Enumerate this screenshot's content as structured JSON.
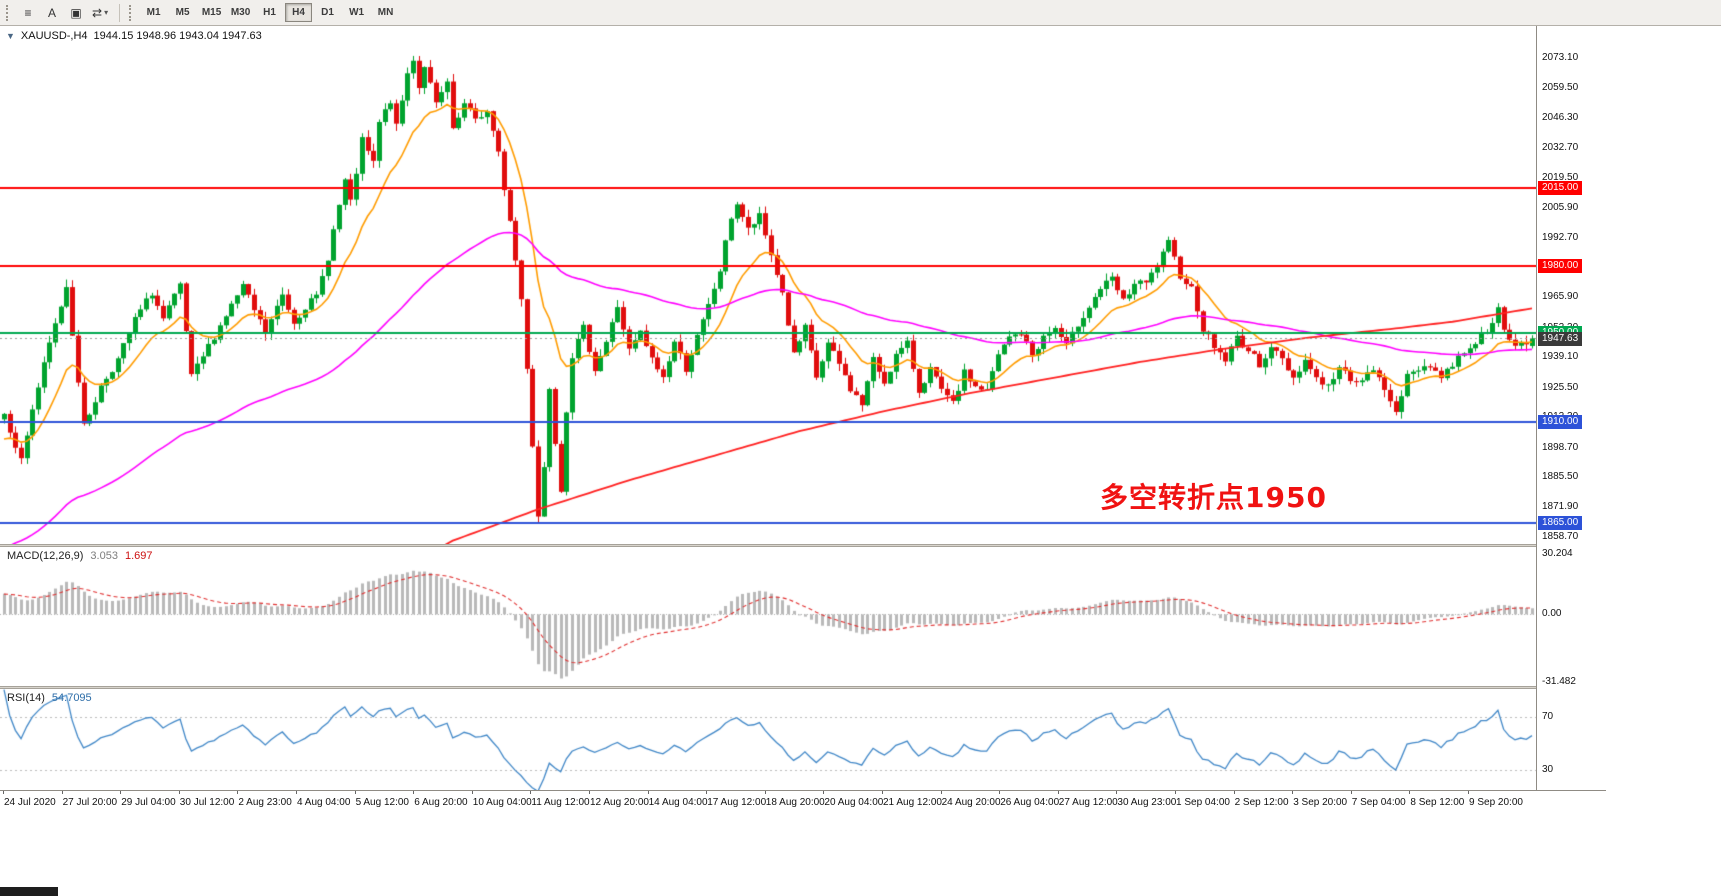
{
  "toolbar": {
    "tool_buttons": [
      {
        "name": "chart-list-icon",
        "glyph": "≡"
      },
      {
        "name": "text-label-icon",
        "glyph": "A"
      },
      {
        "name": "template-icon",
        "glyph": "▣"
      },
      {
        "name": "indicators-dropdown-icon",
        "glyph": "⇄",
        "caret": "▾"
      }
    ],
    "timeframes": [
      {
        "label": "M1",
        "active": false
      },
      {
        "label": "M5",
        "active": false
      },
      {
        "label": "M15",
        "active": false
      },
      {
        "label": "M30",
        "active": false
      },
      {
        "label": "H1",
        "active": false
      },
      {
        "label": "H4",
        "active": true
      },
      {
        "label": "D1",
        "active": false
      },
      {
        "label": "W1",
        "active": false
      },
      {
        "label": "MN",
        "active": false
      }
    ]
  },
  "chart": {
    "collapse_arrow": "▼",
    "title": "XAUUSD-,H4",
    "ohlc_text": "1944.15 1948.96 1943.04 1947.63",
    "annotation": {
      "text": "多空转折点1950",
      "color": "#f01212"
    },
    "y_ticks": [
      2073.1,
      2059.5,
      2046.3,
      2032.7,
      2019.5,
      2005.9,
      1992.7,
      1979.1,
      1965.9,
      1952.3,
      1939.1,
      1925.5,
      1912.3,
      1898.7,
      1885.5,
      1871.9,
      1858.7
    ],
    "x_ticks": [
      "24 Jul 2020",
      "27 Jul 20:00",
      "29 Jul 04:00",
      "30 Jul 12:00",
      "2 Aug 23:00",
      "4 Aug 04:00",
      "5 Aug 12:00",
      "6 Aug 20:00",
      "10 Aug 04:00",
      "11 Aug 12:00",
      "12 Aug 20:00",
      "14 Aug 04:00",
      "17 Aug 12:00",
      "18 Aug 20:00",
      "20 Aug 04:00",
      "21 Aug 12:00",
      "24 Aug 20:00",
      "26 Aug 04:00",
      "27 Aug 12:00",
      "30 Aug 23:00",
      "1 Sep 04:00",
      "2 Sep 12:00",
      "3 Sep 20:00",
      "7 Sep 04:00",
      "8 Sep 12:00",
      "9 Sep 20:00"
    ],
    "h_lines": [
      {
        "price": 2015.0,
        "label": "2015.00",
        "color": "#ff0000"
      },
      {
        "price": 1980.0,
        "label": "1980.00",
        "color": "#ff0000"
      },
      {
        "price": 1950.0,
        "label": "1950.00",
        "color": "#00a850"
      },
      {
        "price": 1910.0,
        "label": "1910.00",
        "color": "#2d52d8"
      },
      {
        "price": 1865.0,
        "label": "1865.00",
        "color": "#2d52d8"
      }
    ],
    "current_price": {
      "value": 1947.63,
      "label": "1947.63",
      "tag_bg": "#3a3a3a",
      "line_color": "#9c9c9c"
    },
    "colors": {
      "up": "#00a32e",
      "down": "#e00d0d",
      "ma_fast": "#ff9c00",
      "ma_mid": "#ff00ff",
      "ma_slow": "#ff2020",
      "background": "#ffffff"
    }
  },
  "macd": {
    "name": "MACD(12,26,9)",
    "value": "3.053",
    "signal": "1.697",
    "y_ticks": [
      {
        "v": 30.204,
        "label": "30.204"
      },
      {
        "v": 0,
        "label": "0.00"
      },
      {
        "v": -31.482,
        "label": "-31.482"
      }
    ],
    "ylim": [
      -33.5,
      31.5
    ],
    "hist_color": "#b9b9b9",
    "signal_color": "#e03030"
  },
  "rsi": {
    "name": "RSI(14)",
    "value": "54.7095",
    "levels": [
      70,
      30
    ],
    "ylim": [
      15,
      91
    ],
    "line_color": "#4087c7",
    "level_color": "#bbbbbb"
  },
  "chart_data": {
    "type": "candlestick",
    "symbol": "XAUUSD",
    "timeframe": "H4",
    "visible_range": [
      "24 Jul 2020",
      "9 Sep 2020 20:00"
    ],
    "visible_candles": 270,
    "price_axis_range": [
      1855.5,
      2087.4
    ],
    "last_candle": {
      "open": 1944.15,
      "high": 1948.96,
      "low": 1943.04,
      "close": 1947.63
    },
    "horizontal_levels": [
      2015.0,
      1980.0,
      1950.0,
      1910.0,
      1865.0
    ],
    "close_waypoints": [
      [
        0,
        1914
      ],
      [
        2,
        1900
      ],
      [
        3,
        1893
      ],
      [
        5,
        1916
      ],
      [
        8,
        1945
      ],
      [
        11,
        1971
      ],
      [
        12,
        1950
      ],
      [
        14,
        1908
      ],
      [
        17,
        1926
      ],
      [
        20,
        1938
      ],
      [
        23,
        1956
      ],
      [
        26,
        1968
      ],
      [
        28,
        1956
      ],
      [
        31,
        1971
      ],
      [
        33,
        1930
      ],
      [
        36,
        1944
      ],
      [
        39,
        1958
      ],
      [
        42,
        1971
      ],
      [
        44,
        1960
      ],
      [
        46,
        1950
      ],
      [
        49,
        1967
      ],
      [
        51,
        1955
      ],
      [
        53,
        1962
      ],
      [
        55,
        1966
      ],
      [
        57,
        1984
      ],
      [
        58,
        1996
      ],
      [
        60,
        2018
      ],
      [
        61,
        2008
      ],
      [
        63,
        2036
      ],
      [
        65,
        2026
      ],
      [
        66,
        2044
      ],
      [
        68,
        2054
      ],
      [
        69,
        2042
      ],
      [
        71,
        2066
      ],
      [
        72,
        2073
      ],
      [
        73,
        2060
      ],
      [
        74,
        2070
      ],
      [
        76,
        2052
      ],
      [
        78,
        2062
      ],
      [
        79,
        2040
      ],
      [
        81,
        2052
      ],
      [
        83,
        2046
      ],
      [
        85,
        2049
      ],
      [
        87,
        2030
      ],
      [
        89,
        2000
      ],
      [
        91,
        1965
      ],
      [
        92,
        1935
      ],
      [
        93,
        1900
      ],
      [
        94,
        1868
      ],
      [
        95,
        1890
      ],
      [
        96,
        1926
      ],
      [
        97,
        1902
      ],
      [
        98,
        1880
      ],
      [
        99,
        1916
      ],
      [
        100,
        1940
      ],
      [
        102,
        1952
      ],
      [
        104,
        1934
      ],
      [
        106,
        1946
      ],
      [
        108,
        1962
      ],
      [
        110,
        1942
      ],
      [
        112,
        1950
      ],
      [
        114,
        1938
      ],
      [
        116,
        1930
      ],
      [
        118,
        1946
      ],
      [
        120,
        1934
      ],
      [
        122,
        1948
      ],
      [
        124,
        1962
      ],
      [
        126,
        1978
      ],
      [
        128,
        2002
      ],
      [
        129,
        2008
      ],
      [
        131,
        1996
      ],
      [
        133,
        2002
      ],
      [
        135,
        1985
      ],
      [
        137,
        1968
      ],
      [
        139,
        1940
      ],
      [
        141,
        1952
      ],
      [
        143,
        1930
      ],
      [
        145,
        1945
      ],
      [
        147,
        1936
      ],
      [
        149,
        1925
      ],
      [
        151,
        1918
      ],
      [
        153,
        1938
      ],
      [
        155,
        1928
      ],
      [
        157,
        1940
      ],
      [
        159,
        1945
      ],
      [
        161,
        1924
      ],
      [
        163,
        1934
      ],
      [
        165,
        1924
      ],
      [
        167,
        1918
      ],
      [
        169,
        1932
      ],
      [
        171,
        1926
      ],
      [
        173,
        1924
      ],
      [
        175,
        1940
      ],
      [
        177,
        1948
      ],
      [
        179,
        1950
      ],
      [
        181,
        1940
      ],
      [
        183,
        1948
      ],
      [
        185,
        1952
      ],
      [
        187,
        1944
      ],
      [
        189,
        1954
      ],
      [
        191,
        1962
      ],
      [
        193,
        1970
      ],
      [
        195,
        1974
      ],
      [
        197,
        1964
      ],
      [
        199,
        1972
      ],
      [
        201,
        1972
      ],
      [
        203,
        1980
      ],
      [
        205,
        1990
      ],
      [
        207,
        1976
      ],
      [
        209,
        1970
      ],
      [
        211,
        1952
      ],
      [
        213,
        1944
      ],
      [
        215,
        1938
      ],
      [
        217,
        1948
      ],
      [
        219,
        1942
      ],
      [
        221,
        1936
      ],
      [
        223,
        1944
      ],
      [
        225,
        1938
      ],
      [
        227,
        1930
      ],
      [
        229,
        1938
      ],
      [
        231,
        1930
      ],
      [
        233,
        1926
      ],
      [
        235,
        1934
      ],
      [
        237,
        1930
      ],
      [
        239,
        1928
      ],
      [
        241,
        1934
      ],
      [
        243,
        1924
      ],
      [
        245,
        1916
      ],
      [
        247,
        1930
      ],
      [
        249,
        1934
      ],
      [
        251,
        1936
      ],
      [
        253,
        1930
      ],
      [
        255,
        1936
      ],
      [
        257,
        1942
      ],
      [
        259,
        1946
      ],
      [
        261,
        1952
      ],
      [
        263,
        1960
      ],
      [
        264,
        1950
      ],
      [
        266,
        1944
      ],
      [
        268,
        1946
      ],
      [
        269,
        1947.6
      ]
    ],
    "indicators": {
      "moving_averages": [
        {
          "color_key": "ma_fast",
          "period": 13
        },
        {
          "color_key": "ma_mid",
          "period": 75
        }
      ],
      "ma_slow_waypoints": [
        [
          74,
          1850
        ],
        [
          79,
          1857
        ],
        [
          94,
          1871
        ],
        [
          110,
          1884
        ],
        [
          125,
          1895
        ],
        [
          140,
          1906
        ],
        [
          155,
          1915
        ],
        [
          170,
          1923
        ],
        [
          185,
          1930
        ],
        [
          200,
          1937
        ],
        [
          215,
          1943
        ],
        [
          230,
          1948
        ],
        [
          245,
          1952
        ],
        [
          255,
          1955
        ],
        [
          262,
          1958
        ],
        [
          269,
          1961
        ]
      ],
      "macd": {
        "fast": 12,
        "slow": 26,
        "signal": 9,
        "current": 3.053,
        "current_signal": 1.697
      },
      "rsi": {
        "period": 14,
        "current": 54.7095,
        "levels": [
          70,
          30
        ]
      }
    }
  }
}
